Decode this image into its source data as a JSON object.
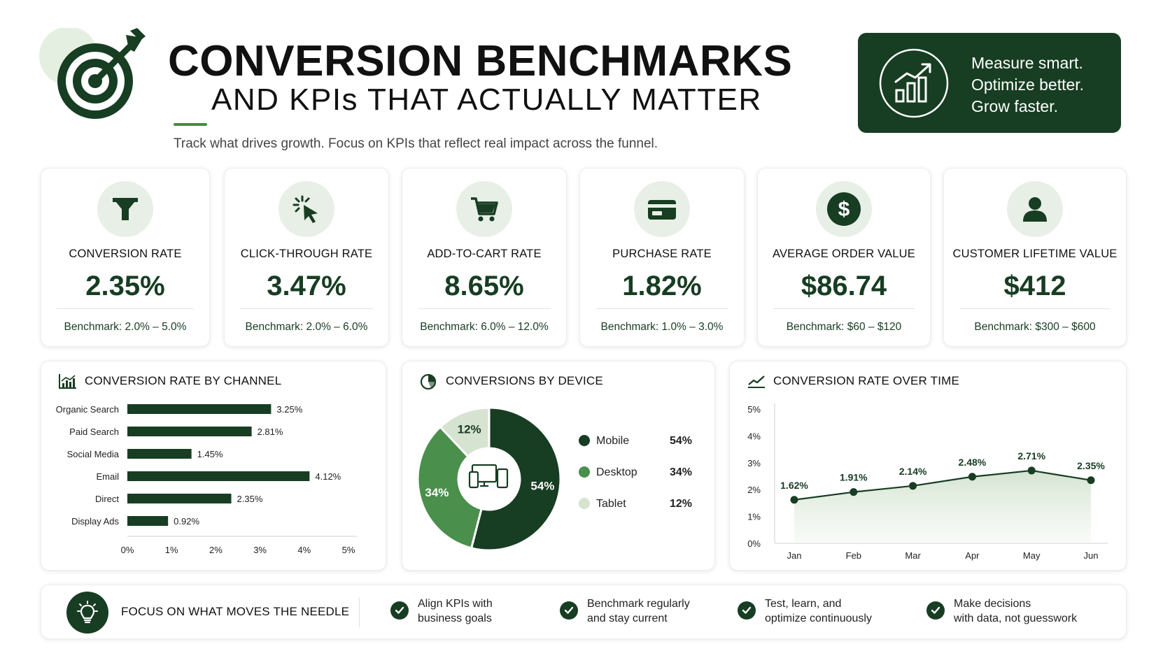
{
  "header": {
    "title": "CONVERSION BENCHMARKS",
    "subtitle_title": "AND KPIs THAT ACTUALLY MATTER",
    "tagline": "Track what drives growth. Focus on KPIs that reflect real impact across the funnel.",
    "promo": [
      "Measure smart.",
      "Optimize better.",
      "Grow faster."
    ]
  },
  "colors": {
    "dark_green": "#173d22",
    "mid_green": "#4a8f4c",
    "light_green": "#d6e3d1",
    "icon_bg": "#e8efe7"
  },
  "kpis": [
    {
      "icon": "funnel-icon",
      "label": "CONVERSION RATE",
      "value": "2.35%",
      "bench_label": "Benchmark:",
      "bench": "2.0% – 5.0%"
    },
    {
      "icon": "cursor-click-icon",
      "label": "CLICK-THROUGH RATE",
      "value": "3.47%",
      "bench_label": "Benchmark:",
      "bench": "2.0% – 6.0%"
    },
    {
      "icon": "cart-icon",
      "label": "ADD-TO-CART RATE",
      "value": "8.65%",
      "bench_label": "Benchmark:",
      "bench": "6.0% – 12.0%"
    },
    {
      "icon": "credit-card-icon",
      "label": "PURCHASE RATE",
      "value": "1.82%",
      "bench_label": "Benchmark:",
      "bench": "1.0% – 3.0%"
    },
    {
      "icon": "dollar-icon",
      "label": "AVERAGE ORDER VALUE",
      "value": "$86.74",
      "bench_label": "Benchmark:",
      "bench": "$60 – $120"
    },
    {
      "icon": "user-icon",
      "label": "CUSTOMER LIFETIME VALUE",
      "value": "$412",
      "bench_label": "Benchmark:",
      "bench": "$300 – $600"
    }
  ],
  "chart_data": [
    {
      "type": "bar",
      "orientation": "horizontal",
      "title": "CONVERSION RATE BY CHANNEL",
      "categories": [
        "Organic Search",
        "Paid Search",
        "Social Media",
        "Email",
        "Direct",
        "Display Ads"
      ],
      "values": [
        3.25,
        2.81,
        1.45,
        4.12,
        2.35,
        0.92
      ],
      "value_labels": [
        "3.25%",
        "2.81%",
        "1.45%",
        "4.12%",
        "2.35%",
        "0.92%"
      ],
      "xlim": [
        0,
        5
      ],
      "x_ticks": [
        "0%",
        "1%",
        "2%",
        "3%",
        "4%",
        "5%"
      ],
      "grid": false
    },
    {
      "type": "pie",
      "donut": true,
      "title": "CONVERSIONS BY DEVICE",
      "series": [
        {
          "name": "Mobile",
          "value": 54,
          "label": "54%",
          "color": "#173d22"
        },
        {
          "name": "Desktop",
          "value": 34,
          "label": "34%",
          "color": "#4a8f4c"
        },
        {
          "name": "Tablet",
          "value": 12,
          "label": "12%",
          "color": "#d6e3d1"
        }
      ],
      "legend": "right"
    },
    {
      "type": "line",
      "title": "CONVERSION RATE OVER TIME",
      "x": [
        "Jan",
        "Feb",
        "Mar",
        "Apr",
        "May",
        "Jun"
      ],
      "values": [
        1.62,
        1.91,
        2.14,
        2.48,
        2.71,
        2.35
      ],
      "value_labels": [
        "1.62%",
        "1.91%",
        "2.14%",
        "2.48%",
        "2.71%",
        "2.35%"
      ],
      "ylim": [
        0,
        5
      ],
      "y_ticks": [
        "0%",
        "1%",
        "2%",
        "3%",
        "4%",
        "5%"
      ],
      "area_fill": true,
      "grid": false
    }
  ],
  "footer": {
    "heading": "FOCUS ON WHAT MOVES THE NEEDLE",
    "items": [
      [
        "Align KPIs with",
        "business goals"
      ],
      [
        "Benchmark regularly",
        "and stay current"
      ],
      [
        "Test, learn, and",
        "optimize continuously"
      ],
      [
        "Make decisions",
        "with data, not guesswork"
      ]
    ]
  }
}
